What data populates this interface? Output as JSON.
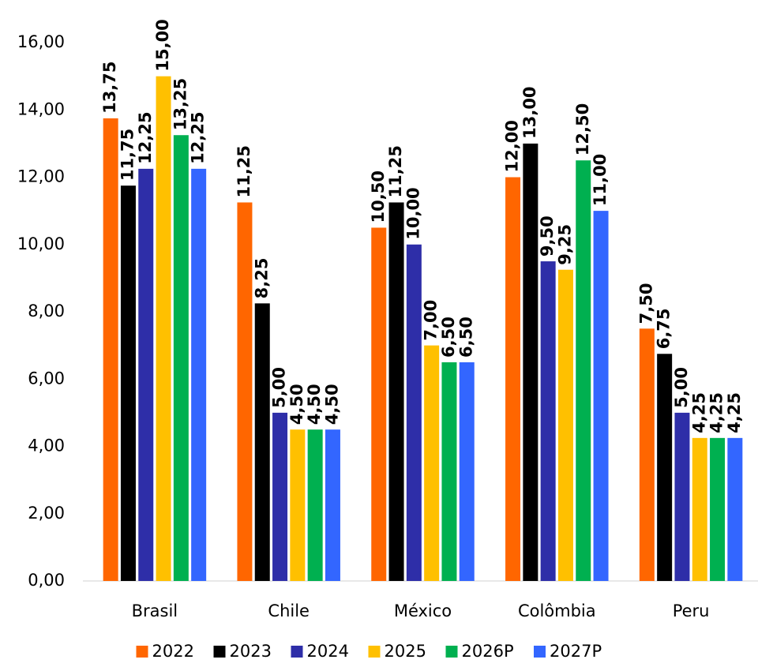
{
  "chart_data": {
    "type": "bar",
    "categories": [
      "Brasil",
      "Chile",
      "México",
      "Colômbia",
      "Peru"
    ],
    "series": [
      {
        "name": "2022",
        "color": "#ff6600",
        "values": [
          13.75,
          11.25,
          10.5,
          12.0,
          7.5
        ],
        "value_labels": [
          "13,75",
          "11,25",
          "10,50",
          "12,00",
          "7,50"
        ]
      },
      {
        "name": "2023",
        "color": "#000000",
        "values": [
          11.75,
          8.25,
          11.25,
          13.0,
          6.75
        ],
        "value_labels": [
          "11,75",
          "8,25",
          "11,25",
          "13,00",
          "6,75"
        ]
      },
      {
        "name": "2024",
        "color": "#2e2ea8",
        "values": [
          12.25,
          5.0,
          10.0,
          9.5,
          5.0
        ],
        "value_labels": [
          "12,25",
          "5,00",
          "10,00",
          "9,50",
          "5,00"
        ]
      },
      {
        "name": "2025",
        "color": "#ffc000",
        "values": [
          15.0,
          4.5,
          7.0,
          9.25,
          4.25
        ],
        "value_labels": [
          "15,00",
          "4,50",
          "7,00",
          "9,25",
          "4,25"
        ]
      },
      {
        "name": "2026P",
        "color": "#00b050",
        "values": [
          13.25,
          4.5,
          6.5,
          12.5,
          4.25
        ],
        "value_labels": [
          "13,25",
          "4,50",
          "6,50",
          "12,50",
          "4,25"
        ]
      },
      {
        "name": "2027P",
        "color": "#3366ff",
        "values": [
          12.25,
          4.5,
          6.5,
          11.0,
          4.25
        ],
        "value_labels": [
          "12,25",
          "4,50",
          "6,50",
          "11,00",
          "4,25"
        ]
      }
    ],
    "ylim": [
      0,
      16
    ],
    "yticks": [
      {
        "value": 0,
        "label": "0,00"
      },
      {
        "value": 2,
        "label": "2,00"
      },
      {
        "value": 4,
        "label": "4,00"
      },
      {
        "value": 6,
        "label": "6,00"
      },
      {
        "value": 8,
        "label": "8,00"
      },
      {
        "value": 10,
        "label": "10,00"
      },
      {
        "value": 12,
        "label": "12,00"
      },
      {
        "value": 14,
        "label": "14,00"
      },
      {
        "value": 16,
        "label": "16,00"
      }
    ],
    "grid": false,
    "legend": "bottom"
  }
}
